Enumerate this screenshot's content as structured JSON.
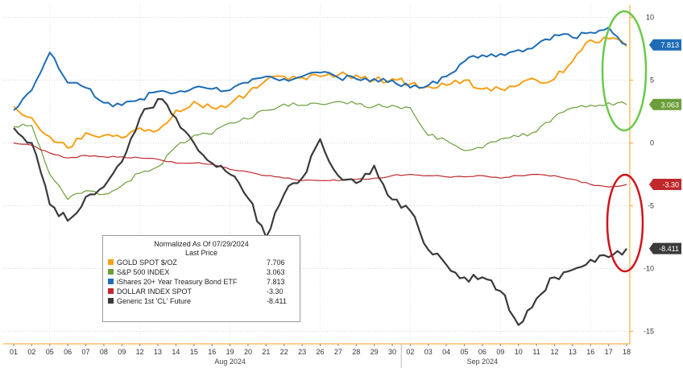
{
  "chart_data": {
    "type": "line",
    "title": "Normalized As Of 07/29/2024",
    "legend_header": "Last Price",
    "legend_position": "bottom-left",
    "grid": true,
    "ylim": [
      -16,
      11
    ],
    "y_ticks": [
      10,
      5,
      0,
      -5,
      -10,
      -15
    ],
    "x_tick_labels": [
      "01",
      "02",
      "05",
      "06",
      "07",
      "08",
      "09",
      "12",
      "13",
      "14",
      "15",
      "16",
      "19",
      "20",
      "21",
      "22",
      "23",
      "26",
      "27",
      "28",
      "29",
      "30",
      "02",
      "03",
      "04",
      "05",
      "06",
      "09",
      "10",
      "11",
      "12",
      "13",
      "16",
      "17",
      "18"
    ],
    "x_month_labels": [
      {
        "label": "Aug 2024",
        "at_index": 12
      },
      {
        "label": "Sep 2024",
        "at_index": 26
      }
    ],
    "series": [
      {
        "name": "GOLD SPOT $/OZ",
        "color": "#f7a11a",
        "last": "7.706",
        "values": [
          2.9,
          2.0,
          0.5,
          -0.4,
          0.8,
          0.6,
          0.4,
          1.2,
          1.0,
          2.6,
          3.3,
          2.8,
          3.1,
          4.0,
          5.0,
          5.3,
          5.2,
          5.3,
          5.4,
          5.4,
          5.0,
          5.1,
          4.7,
          4.5,
          4.6,
          5.0,
          4.3,
          4.3,
          4.6,
          5.0,
          5.1,
          6.5,
          8.2,
          8.3,
          7.7
        ]
      },
      {
        "name": "S&P 500 INDEX",
        "color": "#6b9e3a",
        "last": "3.063",
        "values": [
          1.3,
          1.4,
          -2.5,
          -4.5,
          -3.8,
          -4.1,
          -3.4,
          -2.4,
          -1.9,
          -0.3,
          0.6,
          0.7,
          1.6,
          1.9,
          2.6,
          3.1,
          3.0,
          3.1,
          3.3,
          3.1,
          2.9,
          3.0,
          2.8,
          0.6,
          0.2,
          -0.6,
          -0.4,
          0.3,
          0.5,
          0.9,
          2.1,
          2.8,
          3.0,
          3.2,
          3.063
        ]
      },
      {
        "name": "iShares 20+ Year Treasury Bond ETF",
        "color": "#1f6cb5",
        "last": "7.813",
        "values": [
          2.6,
          4.2,
          7.2,
          4.8,
          4.4,
          3.2,
          3.0,
          3.5,
          4.1,
          4.0,
          4.4,
          4.3,
          4.2,
          4.8,
          5.3,
          5.1,
          5.3,
          5.6,
          5.2,
          5.1,
          5.1,
          5.0,
          4.4,
          4.6,
          5.3,
          6.5,
          7.0,
          7.1,
          7.4,
          7.8,
          8.6,
          8.4,
          8.8,
          9.2,
          7.813
        ]
      },
      {
        "name": "DOLLAR INDEX SPOT",
        "color": "#c0282d",
        "last": "-3.30",
        "values": [
          0.0,
          -0.2,
          -0.8,
          -1.2,
          -1.0,
          -1.1,
          -1.1,
          -1.2,
          -1.3,
          -1.6,
          -1.6,
          -1.7,
          -2.1,
          -2.3,
          -2.6,
          -2.8,
          -3.0,
          -3.0,
          -3.0,
          -2.9,
          -2.8,
          -2.6,
          -2.5,
          -2.6,
          -2.7,
          -2.7,
          -2.6,
          -2.8,
          -2.6,
          -2.5,
          -2.6,
          -2.9,
          -3.3,
          -3.5,
          -3.3
        ]
      },
      {
        "name": "Generic 1st 'CL' Future",
        "color": "#3a3a3a",
        "last": "-8.411",
        "values": [
          1.2,
          0.0,
          -4.9,
          -6.2,
          -4.3,
          -3.5,
          -1.5,
          2.0,
          3.5,
          2.0,
          0.0,
          -1.6,
          -2.5,
          -4.4,
          -7.5,
          -4.1,
          -2.8,
          0.3,
          -2.6,
          -3.2,
          -1.8,
          -4.5,
          -5.4,
          -8.5,
          -9.7,
          -10.7,
          -10.7,
          -11.8,
          -14.5,
          -12.4,
          -10.7,
          -10.1,
          -9.3,
          -9.1,
          -8.411
        ]
      }
    ]
  }
}
